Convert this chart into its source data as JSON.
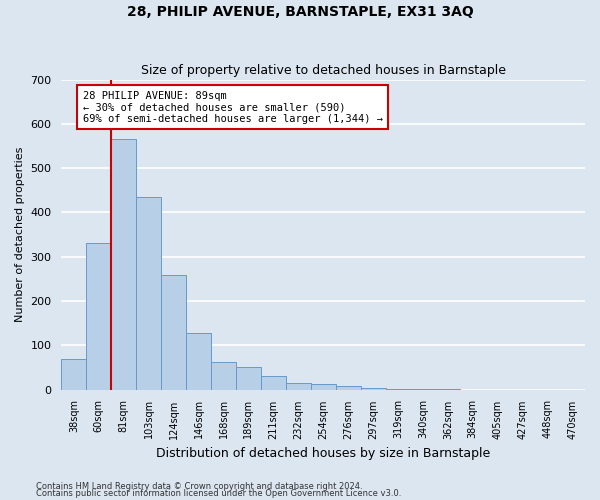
{
  "title": "28, PHILIP AVENUE, BARNSTAPLE, EX31 3AQ",
  "subtitle": "Size of property relative to detached houses in Barnstaple",
  "xlabel": "Distribution of detached houses by size in Barnstaple",
  "ylabel": "Number of detached properties",
  "categories": [
    "38sqm",
    "60sqm",
    "81sqm",
    "103sqm",
    "124sqm",
    "146sqm",
    "168sqm",
    "189sqm",
    "211sqm",
    "232sqm",
    "254sqm",
    "276sqm",
    "297sqm",
    "319sqm",
    "340sqm",
    "362sqm",
    "384sqm",
    "405sqm",
    "427sqm",
    "448sqm",
    "470sqm"
  ],
  "values": [
    70,
    330,
    565,
    435,
    258,
    127,
    63,
    52,
    30,
    15,
    13,
    8,
    3,
    2,
    1,
    1,
    0,
    0,
    0,
    0,
    0
  ],
  "bar_color": "#b8cfe8",
  "bar_edge_color": "#6699cc",
  "axes_bg_color": "#dce6f0",
  "fig_bg_color": "#dce6f0",
  "grid_color": "#ffffff",
  "vline_color": "#cc0000",
  "vline_x_index": 2,
  "annotation_text": "28 PHILIP AVENUE: 89sqm\n← 30% of detached houses are smaller (590)\n69% of semi-detached houses are larger (1,344) →",
  "annotation_box_facecolor": "#ffffff",
  "annotation_box_edgecolor": "#cc0000",
  "ylim": [
    0,
    700
  ],
  "yticks": [
    0,
    100,
    200,
    300,
    400,
    500,
    600,
    700
  ],
  "footnote1": "Contains HM Land Registry data © Crown copyright and database right 2024.",
  "footnote2": "Contains public sector information licensed under the Open Government Licence v3.0."
}
